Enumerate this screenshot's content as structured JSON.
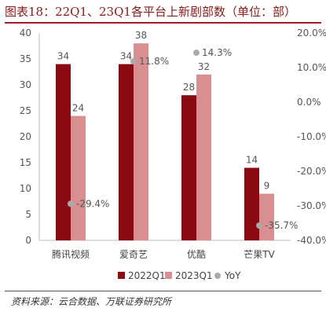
{
  "title": "图表18：22Q1、23Q1各平台上新剧部数（单位：部）",
  "source": "资料来源：云合数据、万联证券研究所",
  "chart_data": {
    "type": "bar",
    "categories": [
      "腾讯视频",
      "爱奇艺",
      "优酷",
      "芒果TV"
    ],
    "series": [
      {
        "name": "2022Q1",
        "values": [
          34,
          34,
          28,
          14
        ],
        "color": "#8b0a12"
      },
      {
        "name": "2023Q1",
        "values": [
          24,
          38,
          32,
          9
        ],
        "color": "#d98f92"
      }
    ],
    "line_series": {
      "name": "YoY",
      "values": [
        -29.4,
        11.8,
        14.3,
        -35.7
      ],
      "labels": [
        "-29.4%",
        "11.8%",
        "14.3%",
        "-35.7%"
      ],
      "color": "#aaaaaa"
    },
    "ylim": [
      0,
      40
    ],
    "yticks": [
      "0",
      "5",
      "10",
      "15",
      "20",
      "25",
      "30",
      "35",
      "40"
    ],
    "y2lim": [
      -40,
      20
    ],
    "y2ticks": [
      "-40.0%",
      "-30.0%",
      "-20.0%",
      "-10.0%",
      "0.0%",
      "10.0%",
      "20.0%"
    ],
    "legend_position": "bottom",
    "grid": false
  }
}
